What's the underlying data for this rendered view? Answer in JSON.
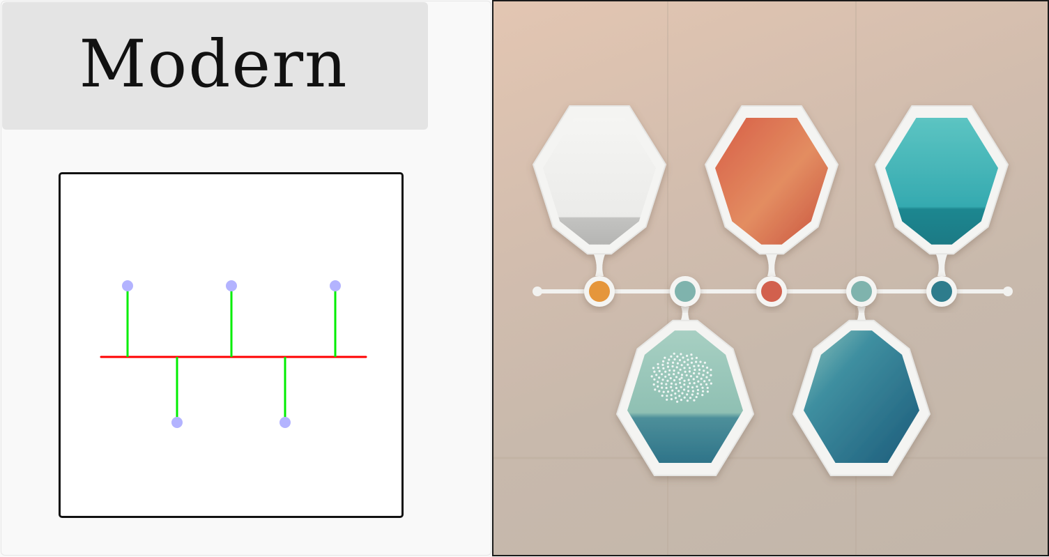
{
  "title": "Modern",
  "colors": {
    "axis_line": "#ff0000",
    "stem_line": "#00ee00",
    "node_dot": "#b3b3ff",
    "frame_border": "#111111",
    "title_bg": "#e4e4e4",
    "illustration_bg": "#c9b9ab",
    "badge_orange": "#e5963a",
    "badge_sage": "#7fb3ad",
    "badge_red": "#d2604d",
    "badge_teal": "#2f7c8c",
    "shape_white": "#f1f1ef",
    "shape_coral": "#d8694f",
    "shape_turquoise": "#3fb2b6",
    "shape_seafoam": "#8cc1b6",
    "shape_deepblue": "#256a85"
  },
  "sketch": {
    "nodes": [
      {
        "side": "up"
      },
      {
        "side": "down"
      },
      {
        "side": "up"
      },
      {
        "side": "down"
      },
      {
        "side": "up"
      }
    ]
  },
  "illustration": {
    "markers": [
      {
        "color_key": "badge_orange"
      },
      {
        "color_key": "badge_sage"
      },
      {
        "color_key": "badge_red"
      },
      {
        "color_key": "badge_sage"
      },
      {
        "color_key": "badge_teal"
      }
    ],
    "shapes": [
      {
        "position": "top",
        "color_key": "shape_white"
      },
      {
        "position": "bottom",
        "color_key": "shape_seafoam"
      },
      {
        "position": "top",
        "color_key": "shape_coral"
      },
      {
        "position": "bottom",
        "color_key": "shape_deepblue"
      },
      {
        "position": "top",
        "color_key": "shape_turquoise"
      }
    ]
  }
}
